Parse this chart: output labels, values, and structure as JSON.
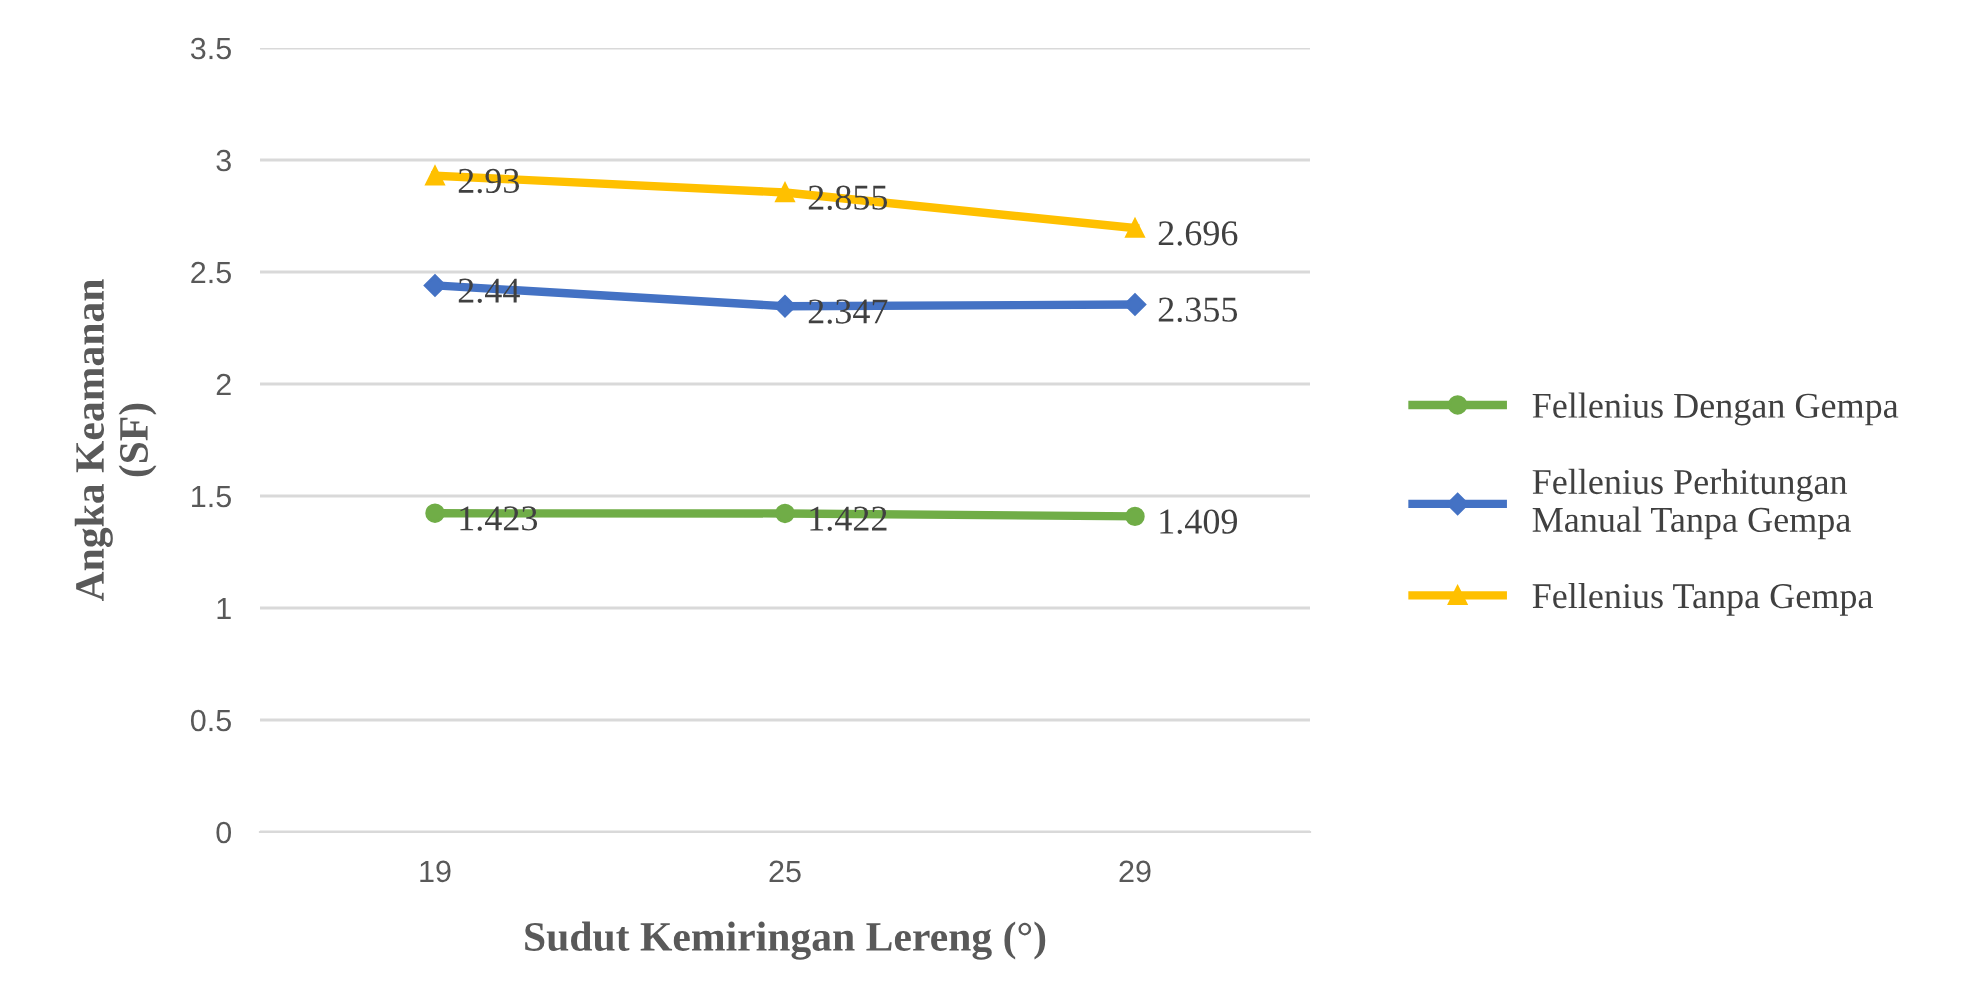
{
  "chart_data": {
    "type": "line",
    "xlabel": "Sudut Kemiringan Lereng (°)",
    "ylabel": "Angka Keamanan\n(SF)",
    "categories": [
      "19",
      "25",
      "29"
    ],
    "series": [
      {
        "name": "Fellenius Dengan Gempa",
        "color": "#70ad47",
        "marker": "circle",
        "values": [
          1.423,
          1.422,
          1.409
        ]
      },
      {
        "name": "Fellenius Perhitungan\nManual Tanpa Gempa",
        "color": "#4472c4",
        "marker": "diamond",
        "values": [
          2.44,
          2.347,
          2.355
        ]
      },
      {
        "name": "Fellenius Tanpa Gempa",
        "color": "#ffc000",
        "marker": "triangle",
        "values": [
          2.93,
          2.855,
          2.696
        ]
      }
    ],
    "ylim": [
      0,
      3.5
    ],
    "yticks": [
      0,
      0.5,
      1,
      1.5,
      2,
      2.5,
      3,
      3.5
    ],
    "grid": "y",
    "legend": "right",
    "data_labels": true,
    "line_style": "solid"
  }
}
